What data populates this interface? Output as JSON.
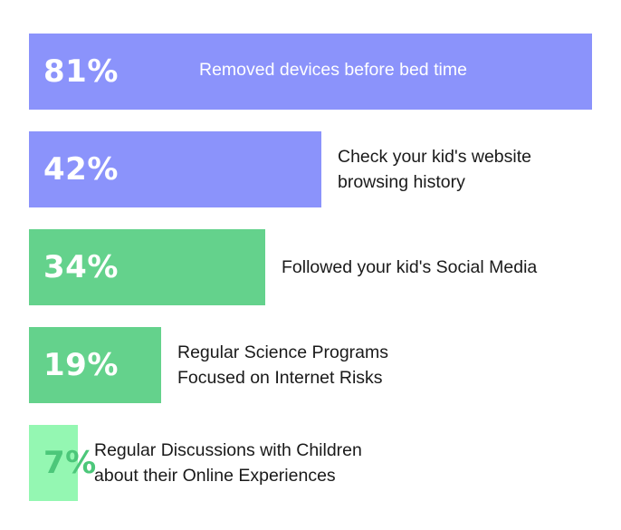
{
  "chart_data": {
    "type": "bar",
    "orientation": "horizontal",
    "title": "",
    "xlabel": "",
    "ylabel": "",
    "xlim": [
      0,
      100
    ],
    "grid": false,
    "legend": "none",
    "categories": [
      "Removed devices before bed time",
      "Check your kid's  website browsing history",
      "Followed your kid's Social Media",
      "Regular Science Programs Focused on Internet Risks",
      "Regular Discussions with Children about their Online Experiences"
    ],
    "values": [
      81,
      42,
      34,
      19,
      7
    ],
    "value_labels": [
      "81%",
      "42%",
      "34%",
      "19%",
      "7%"
    ],
    "label_lines": [
      [
        "Removed devices before bed time"
      ],
      [
        "Check your kid's  website",
        "browsing history"
      ],
      [
        "Followed your kid's Social Media"
      ],
      [
        "Regular Science Programs",
        "Focused on Internet Risks"
      ],
      [
        "Regular Discussions with Children",
        "about their Online Experiences"
      ]
    ],
    "colors": [
      "#8b93fb",
      "#8b93fb",
      "#64d28c",
      "#64d28c",
      "#94f7b2"
    ],
    "value_label_colors": [
      "#ffffff",
      "#ffffff",
      "#ffffff",
      "#ffffff",
      "#4cc77a"
    ]
  }
}
